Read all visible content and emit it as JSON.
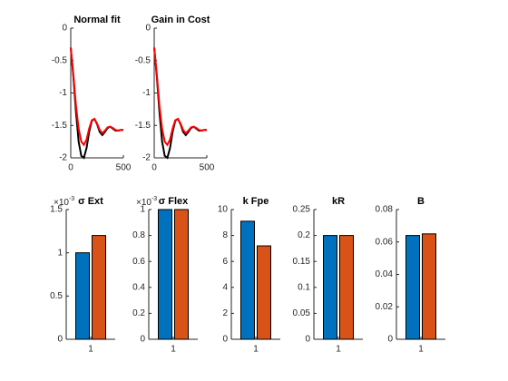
{
  "chart_data": [
    {
      "type": "line",
      "title": "Normal fit",
      "x": [
        0,
        25,
        50,
        75,
        100,
        125,
        150,
        175,
        200,
        225,
        250,
        275,
        300,
        325,
        350,
        375,
        400,
        425,
        450,
        475,
        500
      ],
      "series": [
        {
          "color": "#000000",
          "values": [
            -0.3,
            -0.75,
            -1.3,
            -1.75,
            -1.97,
            -2.0,
            -1.85,
            -1.6,
            -1.43,
            -1.4,
            -1.48,
            -1.6,
            -1.65,
            -1.6,
            -1.54,
            -1.52,
            -1.55,
            -1.58,
            -1.58,
            -1.57,
            -1.57
          ]
        },
        {
          "color": "#ff0000",
          "values": [
            -0.3,
            -0.72,
            -1.2,
            -1.55,
            -1.75,
            -1.8,
            -1.72,
            -1.55,
            -1.42,
            -1.4,
            -1.47,
            -1.57,
            -1.62,
            -1.58,
            -1.53,
            -1.52,
            -1.54,
            -1.57,
            -1.58,
            -1.57,
            -1.57
          ]
        }
      ],
      "xlim": [
        0,
        500
      ],
      "xticks": [
        0,
        500
      ],
      "ylim": [
        -2,
        0
      ],
      "yticks": [
        -2,
        -1.5,
        -1,
        -0.5,
        0
      ]
    },
    {
      "type": "line",
      "title": "Gain in Cost",
      "x": [
        0,
        25,
        50,
        75,
        100,
        125,
        150,
        175,
        200,
        225,
        250,
        275,
        300,
        325,
        350,
        375,
        400,
        425,
        450,
        475,
        500
      ],
      "series": [
        {
          "color": "#000000",
          "values": [
            -0.3,
            -0.75,
            -1.3,
            -1.75,
            -1.97,
            -2.0,
            -1.85,
            -1.6,
            -1.43,
            -1.4,
            -1.48,
            -1.6,
            -1.65,
            -1.6,
            -1.54,
            -1.52,
            -1.55,
            -1.58,
            -1.58,
            -1.57,
            -1.57
          ]
        },
        {
          "color": "#ff0000",
          "values": [
            -0.3,
            -0.72,
            -1.2,
            -1.55,
            -1.75,
            -1.8,
            -1.72,
            -1.55,
            -1.42,
            -1.4,
            -1.47,
            -1.57,
            -1.62,
            -1.58,
            -1.53,
            -1.52,
            -1.54,
            -1.57,
            -1.58,
            -1.57,
            -1.57
          ]
        }
      ],
      "xlim": [
        0,
        500
      ],
      "xticks": [
        0,
        500
      ],
      "ylim": [
        -2,
        0
      ],
      "yticks": [
        -2,
        -1.5,
        -1,
        -0.5,
        0
      ]
    },
    {
      "type": "bar",
      "title": "σ Ext",
      "categories": [
        "1"
      ],
      "series": [
        {
          "color": "#0072bd",
          "values": [
            1.0
          ]
        },
        {
          "color": "#d95319",
          "values": [
            1.2
          ]
        }
      ],
      "ylim": [
        0,
        1.5
      ],
      "yticks": [
        0,
        0.5,
        1,
        1.5
      ],
      "y_exponent": {
        "base": "×10",
        "power": "-3"
      }
    },
    {
      "type": "bar",
      "title": "σ Flex",
      "categories": [
        "1"
      ],
      "series": [
        {
          "color": "#0072bd",
          "values": [
            1.0
          ]
        },
        {
          "color": "#d95319",
          "values": [
            1.0
          ]
        }
      ],
      "ylim": [
        0,
        1
      ],
      "yticks": [
        0,
        0.2,
        0.4,
        0.6,
        0.8,
        1
      ],
      "y_exponent": {
        "base": "×10",
        "power": "-3"
      }
    },
    {
      "type": "bar",
      "title": "k Fpe",
      "categories": [
        "1"
      ],
      "series": [
        {
          "color": "#0072bd",
          "values": [
            9.1
          ]
        },
        {
          "color": "#d95319",
          "values": [
            7.2
          ]
        }
      ],
      "ylim": [
        0,
        10
      ],
      "yticks": [
        0,
        2,
        4,
        6,
        8,
        10
      ]
    },
    {
      "type": "bar",
      "title": "kR",
      "categories": [
        "1"
      ],
      "series": [
        {
          "color": "#0072bd",
          "values": [
            0.2
          ]
        },
        {
          "color": "#d95319",
          "values": [
            0.2
          ]
        }
      ],
      "ylim": [
        0,
        0.25
      ],
      "yticks": [
        0,
        0.05,
        0.1,
        0.15,
        0.2,
        0.25
      ]
    },
    {
      "type": "bar",
      "title": "B",
      "categories": [
        "1"
      ],
      "series": [
        {
          "color": "#0072bd",
          "values": [
            0.064
          ]
        },
        {
          "color": "#d95319",
          "values": [
            0.065
          ]
        }
      ],
      "ylim": [
        0,
        0.08
      ],
      "yticks": [
        0,
        0.02,
        0.04,
        0.06,
        0.08
      ]
    }
  ]
}
